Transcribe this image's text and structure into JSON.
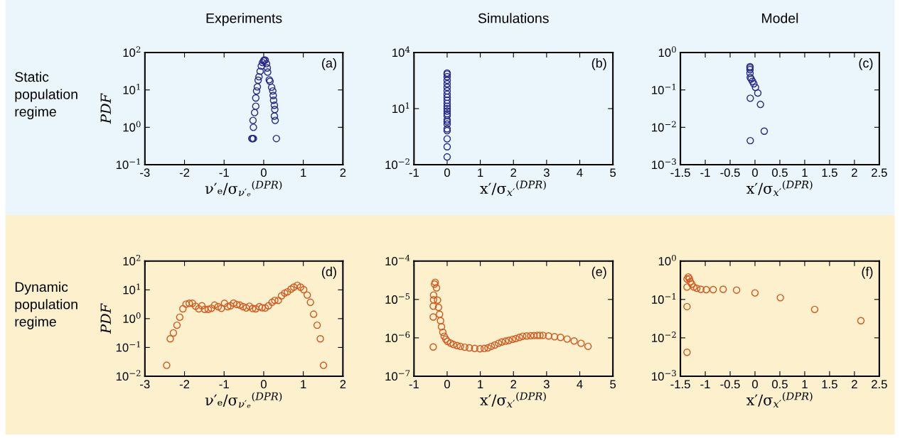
{
  "chart_data": [
    {
      "type": "scatter",
      "title": "Experiments",
      "xlabel": "ν′ₑ/σ$_{ν′ₑ}$$^{(DPR)}$",
      "ylabel": "PDF",
      "annotations": [
        "(a)",
        "Static\npopulation\nregime"
      ],
      "log": "y",
      "marker": "circle",
      "x": [
        -0.3,
        -0.28,
        -0.26,
        -0.27,
        -0.26,
        -0.23,
        -0.2,
        -0.2,
        -0.18,
        -0.16,
        -0.14,
        -0.12,
        -0.09,
        -0.06,
        -0.03,
        0.0,
        0.01,
        0.04,
        0.07,
        0.09,
        0.1,
        0.14,
        0.16,
        0.2,
        0.23,
        0.24,
        0.25,
        0.27,
        0.28,
        0.27,
        0.29,
        0.32
      ],
      "series": [
        {
          "color": "#28288a",
          "values": [
            0.5,
            0.5,
            0.5,
            1.53,
            1.0,
            2.47,
            3.66,
            6.1,
            9.4,
            12.1,
            18.2,
            22.5,
            31.6,
            43.6,
            54,
            60,
            63,
            63,
            50.5,
            38.7,
            30,
            18.7,
            17,
            11.8,
            9.4,
            7.1,
            5.3,
            3.9,
            3.0,
            2.0,
            1.53,
            0.5
          ]
        }
      ],
      "xlim": [
        -3,
        2
      ],
      "ylim": [
        0.1,
        100
      ],
      "xticks": [
        -3,
        -2,
        -1,
        0,
        1,
        2
      ],
      "yticks": [
        {
          "value": 0.1,
          "label": "10$^{−1}$"
        },
        {
          "value": 1,
          "label": "10$^{0}$"
        },
        {
          "value": 10,
          "label": "10$^{1}$"
        },
        {
          "value": 100,
          "label": "10$^{2}$"
        }
      ]
    },
    {
      "type": "scatter",
      "title": "Simulations",
      "xlabel": "x′/σ$_{x′}$$^{(DPR)}$",
      "annotations": [
        "(b)"
      ],
      "log": "y",
      "marker": "circle",
      "x": [
        0,
        0,
        0,
        0,
        0,
        0,
        0,
        0,
        0,
        0,
        0,
        0,
        0,
        0,
        0,
        0,
        0,
        0,
        0,
        0,
        0,
        0,
        0,
        0
      ],
      "series": [
        {
          "color": "#28288a",
          "values": [
            0.026,
            0.091,
            0.24,
            0.66,
            0.83,
            1.5,
            2.0,
            2.5,
            4.2,
            5.3,
            7.4,
            10,
            13.4,
            19,
            28,
            40,
            58,
            89,
            138,
            214,
            331,
            513,
            700,
            800
          ]
        }
      ],
      "xlim": [
        -1,
        5
      ],
      "ylim": [
        0.01,
        10000
      ],
      "xticks": [
        -1,
        0,
        1,
        2,
        3,
        4,
        5
      ],
      "yticks": [
        {
          "value": 0.01,
          "label": "10$^{−2}$"
        },
        {
          "value": 10,
          "label": "10$^{1}$"
        },
        {
          "value": 10000,
          "label": "10$^{4}$"
        }
      ]
    },
    {
      "type": "scatter",
      "title": "Model",
      "xlabel": "x′/σ$_{x′}$$^{(DPR)}$",
      "annotations": [
        "(c)"
      ],
      "log": "y",
      "marker": "circle",
      "x": [
        -0.095,
        0.186,
        0.11,
        -0.095,
        0.057,
        0.01,
        -0.024,
        -0.05,
        -0.076,
        -0.095,
        -0.1,
        -0.1,
        -0.1,
        -0.1
      ],
      "series": [
        {
          "color": "#28288a",
          "values": [
            0.0044,
            0.0079,
            0.041,
            0.06,
            0.083,
            0.117,
            0.146,
            0.17,
            0.196,
            0.216,
            0.28,
            0.35,
            0.42,
            0.39
          ]
        }
      ],
      "xlim": [
        -1.5,
        2.5
      ],
      "ylim": [
        0.001,
        1
      ],
      "xticks": [
        -1.5,
        -1,
        -0.5,
        0,
        0.5,
        1,
        1.5,
        2,
        2.5
      ],
      "yticks": [
        {
          "value": 0.001,
          "label": "10$^{−3}$"
        },
        {
          "value": 0.01,
          "label": "10$^{−2}$"
        },
        {
          "value": 0.1,
          "label": "10$^{−1}$"
        },
        {
          "value": 1,
          "label": "10$^{0}$"
        }
      ]
    },
    {
      "type": "scatter",
      "xlabel": "ν′ₑ/σ$_{ν′ₑ}$$^{(DPR)}$",
      "ylabel": "PDF",
      "annotations": [
        "(d)",
        "Dynamic\npopulation\nregime"
      ],
      "log": "y",
      "marker": "circle",
      "x": [
        -2.45,
        -2.36,
        -2.28,
        -2.19,
        -2.12,
        -2.04,
        -1.96,
        -1.88,
        -1.8,
        -1.72,
        -1.64,
        -1.56,
        -1.49,
        -1.4,
        -1.32,
        -1.24,
        -1.15,
        -1.07,
        -0.99,
        -0.91,
        -0.84,
        -0.76,
        -0.68,
        -0.6,
        -0.52,
        -0.44,
        -0.36,
        -0.28,
        -0.2,
        -0.11,
        -0.04,
        0.04,
        0.12,
        0.21,
        0.28,
        0.37,
        0.45,
        0.53,
        0.6,
        0.69,
        0.76,
        0.85,
        0.93,
        1.01,
        1.1,
        1.18,
        1.26,
        1.35,
        1.43,
        1.51
      ],
      "series": [
        {
          "color": "#d2581e",
          "values": [
            0.024,
            0.2,
            0.32,
            0.59,
            1.12,
            2.2,
            3.2,
            3.4,
            3.4,
            2.7,
            2.2,
            2.8,
            2.1,
            2.1,
            2.3,
            2.95,
            2.6,
            2.3,
            3.4,
            2.6,
            2.8,
            3.45,
            3.1,
            2.95,
            2.6,
            2.35,
            2.7,
            2.25,
            2.2,
            2.6,
            2.4,
            2.35,
            2.8,
            3.7,
            4.3,
            4.3,
            6.2,
            7.7,
            8.5,
            10.6,
            12.4,
            14.4,
            12.4,
            10.2,
            6.6,
            3.7,
            1.43,
            0.59,
            0.2,
            0.024
          ]
        }
      ],
      "xlim": [
        -3,
        2
      ],
      "ylim": [
        0.01,
        100
      ],
      "xticks": [
        -3,
        -2,
        -1,
        0,
        1,
        2
      ],
      "yticks": [
        {
          "value": 0.01,
          "label": "10$^{−2}$"
        },
        {
          "value": 0.1,
          "label": "10$^{−1}$"
        },
        {
          "value": 1,
          "label": "10$^{0}$"
        },
        {
          "value": 10,
          "label": "10$^{1}$"
        },
        {
          "value": 100,
          "label": "10$^{2}$"
        }
      ]
    },
    {
      "type": "scatter",
      "xlabel": "x′/σ$_{x′}$$^{(DPR)}$",
      "annotations": [
        "(e)"
      ],
      "log": "y",
      "marker": "circle",
      "x": [
        -0.42,
        -0.42,
        -0.42,
        -0.41,
        -0.41,
        -0.38,
        -0.36,
        -0.32,
        -0.29,
        -0.26,
        -0.23,
        -0.2,
        -0.17,
        -0.13,
        -0.09,
        -0.04,
        0.01,
        0.1,
        0.19,
        0.3,
        0.4,
        0.53,
        0.67,
        0.83,
        0.99,
        1.12,
        1.23,
        1.33,
        1.44,
        1.55,
        1.65,
        1.76,
        1.86,
        1.97,
        2.07,
        2.18,
        2.28,
        2.4,
        2.52,
        2.62,
        2.72,
        2.8,
        2.89,
        3.06,
        3.24,
        3.42,
        3.62,
        3.83,
        4.04,
        4.25
      ],
      "series": [
        {
          "color": "#d2581e",
          "values": [
            5.8e-07,
            3.5e-06,
            6.7e-06,
            9.8e-06,
            1.3e-05,
            2.5e-05,
            2.8e-05,
            2e-05,
            9.6e-06,
            6.2e-06,
            4.1e-06,
            2.8e-06,
            1.95e-06,
            1.4e-06,
            1.1e-06,
            9.2e-07,
            8.1e-07,
            7.3e-07,
            6.7e-07,
            6.3e-07,
            6e-07,
            5.7e-07,
            5.5e-07,
            5.3e-07,
            5.2e-07,
            5.3e-07,
            5.5e-07,
            6e-07,
            6.5e-07,
            7.2e-07,
            7.8e-07,
            8.2e-07,
            8.6e-07,
            9.1e-07,
            9.6e-07,
            1.03e-06,
            1.1e-06,
            1.12e-06,
            1.14e-06,
            1.15e-06,
            1.16e-06,
            1.16e-06,
            1.16e-06,
            1.12e-06,
            1.07e-06,
            1.03e-06,
            9.3e-07,
            8.3e-07,
            7.2e-07,
            6e-07
          ]
        }
      ],
      "xlim": [
        -1,
        5
      ],
      "ylim": [
        1e-07,
        0.0001
      ],
      "xticks": [
        -1,
        0,
        1,
        2,
        3,
        4,
        5
      ],
      "yticks": [
        {
          "value": 1e-07,
          "label": "10$^{−7}$"
        },
        {
          "value": 1e-06,
          "label": "10$^{−6}$"
        },
        {
          "value": 1e-05,
          "label": "10$^{−5}$"
        },
        {
          "value": 0.0001,
          "label": "10$^{−4}$"
        }
      ]
    },
    {
      "type": "scatter",
      "xlabel": "x′/σ$_{x′}$$^{(DPR)}$",
      "annotations": [
        "(f)"
      ],
      "log": "y",
      "marker": "circle",
      "x": [
        -1.367,
        -1.367,
        -1.367,
        -1.367,
        -1.34,
        -1.32,
        -1.3,
        -1.27,
        -1.23,
        -1.17,
        -1.09,
        -0.98,
        -0.84,
        -0.64,
        -0.37,
        0.0,
        0.51,
        1.2,
        2.13
      ],
      "series": [
        {
          "color": "#d2581e",
          "values": [
            0.0042,
            0.065,
            0.21,
            0.34,
            0.385,
            0.35,
            0.29,
            0.25,
            0.21,
            0.195,
            0.184,
            0.18,
            0.18,
            0.184,
            0.175,
            0.148,
            0.111,
            0.055,
            0.028
          ]
        }
      ],
      "xlim": [
        -1.5,
        2.5
      ],
      "ylim": [
        0.001,
        1
      ],
      "xticks": [
        -1.5,
        -1,
        -0.5,
        0,
        0.5,
        1,
        1.5,
        2,
        2.5
      ],
      "yticks": [
        {
          "value": 0.001,
          "label": "10$^{−3}$"
        },
        {
          "value": 0.01,
          "label": "10$^{−2}$"
        },
        {
          "value": 0.1,
          "label": "10$^{−1}$"
        },
        {
          "value": 1,
          "label": "10$^{0}$"
        }
      ]
    }
  ]
}
